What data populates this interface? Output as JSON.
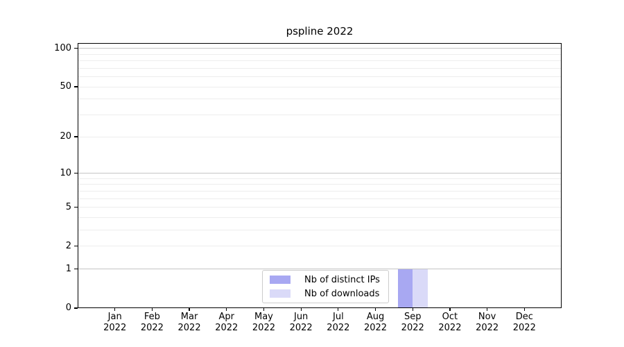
{
  "title": "pspline 2022",
  "colors": {
    "bar_distinct_ips": "#a8a8f2",
    "bar_downloads": "#dadaf8",
    "grid_major": "#c4c4c4",
    "grid_minor": "#ededed",
    "axis": "#000000",
    "legend_border": "#cccccc"
  },
  "chart_data": {
    "type": "bar",
    "title": "pspline 2022",
    "categories": [
      {
        "month": "Jan",
        "year": "2022"
      },
      {
        "month": "Feb",
        "year": "2022"
      },
      {
        "month": "Mar",
        "year": "2022"
      },
      {
        "month": "Apr",
        "year": "2022"
      },
      {
        "month": "May",
        "year": "2022"
      },
      {
        "month": "Jun",
        "year": "2022"
      },
      {
        "month": "Jul",
        "year": "2022"
      },
      {
        "month": "Aug",
        "year": "2022"
      },
      {
        "month": "Sep",
        "year": "2022"
      },
      {
        "month": "Oct",
        "year": "2022"
      },
      {
        "month": "Nov",
        "year": "2022"
      },
      {
        "month": "Dec",
        "year": "2022"
      }
    ],
    "series": [
      {
        "name": "Nb of distinct IPs",
        "color": "#a8a8f2",
        "values": [
          0,
          0,
          0,
          0,
          0,
          0,
          0,
          0,
          1,
          0,
          0,
          0
        ]
      },
      {
        "name": "Nb of downloads",
        "color": "#dadaf8",
        "values": [
          0,
          0,
          0,
          0,
          0,
          0,
          0,
          0,
          1,
          0,
          0,
          0
        ]
      }
    ],
    "xlabel": "",
    "ylabel": "",
    "yscale": "log1p",
    "ylim": [
      0,
      110
    ],
    "yticks": [
      0,
      1,
      2,
      5,
      10,
      20,
      50,
      100
    ],
    "grid": {
      "major": [
        1,
        10,
        100
      ],
      "minor": [
        2,
        3,
        4,
        5,
        6,
        7,
        8,
        9,
        20,
        30,
        40,
        50,
        60,
        70,
        80,
        90
      ]
    },
    "legend_position": "lower center"
  }
}
